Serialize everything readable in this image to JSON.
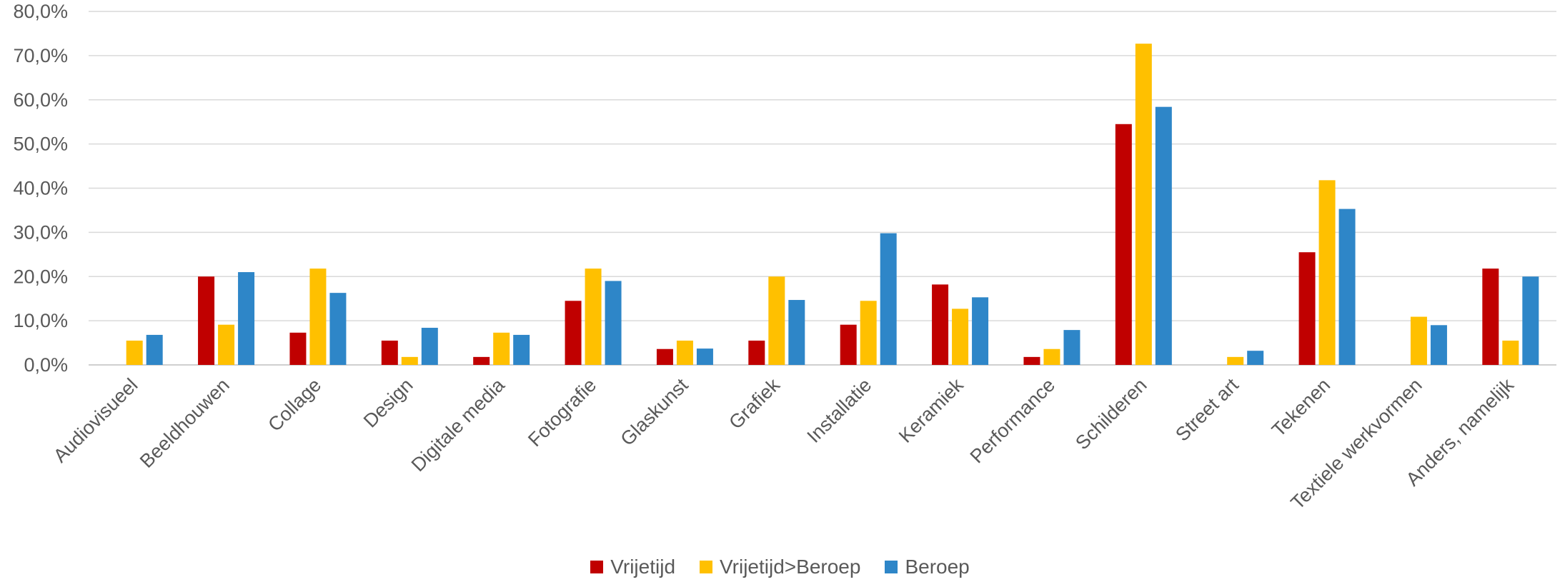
{
  "chart_data": {
    "type": "bar",
    "categories": [
      "Audiovisueel",
      "Beeldhouwen",
      "Collage",
      "Design",
      "Digitale media",
      "Fotografie",
      "Glaskunst",
      "Grafiek",
      "Installatie",
      "Keramiek",
      "Performance",
      "Schilderen",
      "Street art",
      "Tekenen",
      "Textiele werkvormen",
      "Anders, namelijk"
    ],
    "series": [
      {
        "name": "Vrijetijd",
        "color": "#C00000",
        "values": [
          0.0,
          20.0,
          7.3,
          5.5,
          1.8,
          14.5,
          3.6,
          5.5,
          9.1,
          18.2,
          1.8,
          54.5,
          0.0,
          25.5,
          0.0,
          21.8
        ]
      },
      {
        "name": "Vrijetijd>Beroep",
        "color": "#FFC000",
        "values": [
          5.5,
          9.1,
          21.8,
          1.8,
          7.3,
          21.8,
          5.5,
          20.0,
          14.5,
          12.7,
          3.6,
          72.7,
          1.8,
          41.8,
          10.9,
          5.5
        ]
      },
      {
        "name": "Beroep",
        "color": "#2E86C8",
        "values": [
          6.8,
          21.0,
          16.3,
          8.4,
          6.8,
          19.0,
          3.7,
          14.7,
          29.8,
          15.3,
          7.9,
          58.4,
          3.2,
          35.3,
          9.0,
          20.0
        ]
      }
    ],
    "yticks": [
      "0,0%",
      "10,0%",
      "20,0%",
      "30,0%",
      "40,0%",
      "50,0%",
      "60,0%",
      "70,0%",
      "80,0%"
    ],
    "ylim": [
      0,
      80
    ],
    "grid": true,
    "legend_position": "bottom",
    "title": "",
    "xlabel": "",
    "ylabel": ""
  },
  "legend": {
    "items": [
      {
        "label": "Vrijetijd",
        "color": "#C00000"
      },
      {
        "label": "Vrijetijd>Beroep",
        "color": "#FFC000"
      },
      {
        "label": "Beroep",
        "color": "#2E86C8"
      }
    ]
  }
}
